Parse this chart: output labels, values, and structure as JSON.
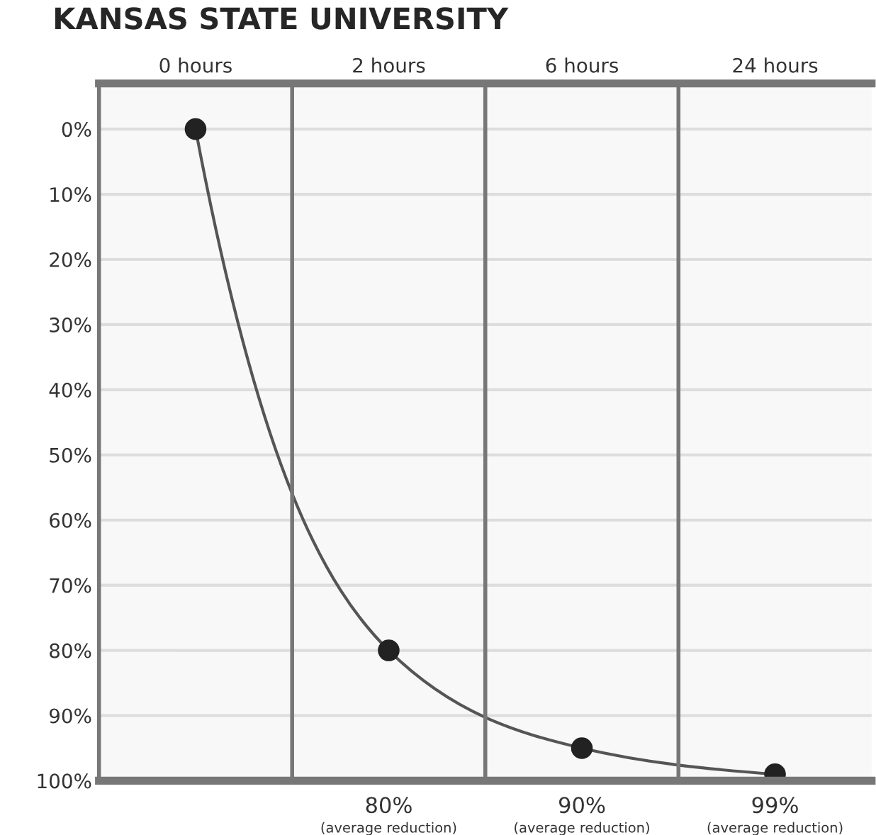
{
  "chart_data": {
    "type": "line",
    "title": "KANSAS STATE UNIVERSITY",
    "categories": [
      "0 hours",
      "2 hours",
      "6 hours",
      "24 hours"
    ],
    "series": [
      {
        "color": "#222222",
        "values": [
          0,
          80,
          95,
          99
        ]
      }
    ],
    "marker": "circle",
    "line_style": "solid",
    "grid": true,
    "legend": false,
    "ylim": [
      100,
      -7
    ],
    "yticks": [
      {
        "value": 0,
        "label": "0%"
      },
      {
        "value": 10,
        "label": "10%"
      },
      {
        "value": 20,
        "label": "20%"
      },
      {
        "value": 30,
        "label": "30%"
      },
      {
        "value": 40,
        "label": "40%"
      },
      {
        "value": 50,
        "label": "50%"
      },
      {
        "value": 60,
        "label": "60%"
      },
      {
        "value": 70,
        "label": "70%"
      },
      {
        "value": 80,
        "label": "80%"
      },
      {
        "value": 90,
        "label": "90%"
      },
      {
        "value": 100,
        "label": "100%"
      }
    ],
    "annotations": [
      "80%\n(average reduction)",
      "90%\n(average reduction)",
      "99%\n(average reduction)"
    ]
  }
}
